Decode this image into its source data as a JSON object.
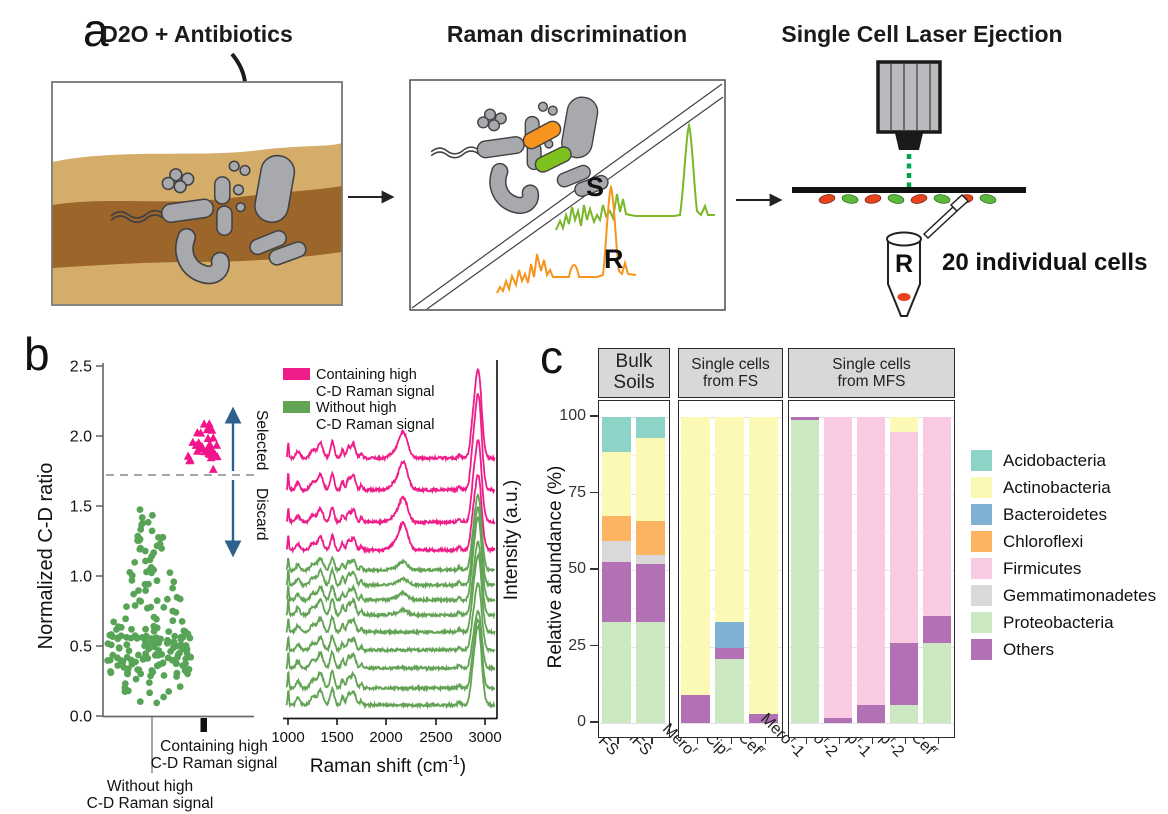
{
  "panel_a": {
    "label": "a",
    "step1": {
      "title": "D2O + Antibiotics"
    },
    "step2": {
      "title": "Raman discrimination",
      "sensitive_label": "S",
      "resistant_label": "R"
    },
    "step3": {
      "title": "Single Cell Laser Ejection",
      "tube_label": "R",
      "caption": "20 individual cells"
    },
    "colors": {
      "soil_light": "#d4ad6a",
      "soil_dark": "#9c6529",
      "cell_gray": "#a7a9ac",
      "cell_orange": "#f7941e",
      "cell_green": "#7dc21f",
      "laser_beam": "#00a551",
      "ejected_red": "#e8431f",
      "ejected_green": "#5cb93c"
    }
  },
  "panel_b": {
    "label": "b"
  },
  "panel_c": {
    "label": "c"
  },
  "chart_data": [
    {
      "id": "normalized-cd-ratio-swarm",
      "type": "scatter",
      "ylabel": "Normalized C-D ratio",
      "ylim": [
        0,
        2.5
      ],
      "yticks": [
        "0.0",
        "0.5",
        "1.0",
        "1.5",
        "2.0",
        "2.5"
      ],
      "threshold": {
        "value": 1.72,
        "style": "dashed",
        "color": "#9a9a9a"
      },
      "annotations": {
        "selected": "Selected",
        "discard": "Discard",
        "arrow_color": "#2e608d"
      },
      "categories": [
        {
          "label_line1": "Without high",
          "label_line2": "C-D Raman signal"
        },
        {
          "label_line1": "Containing high",
          "label_line2": "C-D Raman signal"
        }
      ],
      "series": [
        {
          "name": "Without high C-D Raman signal",
          "marker": "circle",
          "color": "#57a457",
          "n": 195,
          "y_range": [
            0.08,
            1.62
          ],
          "y_mode": 0.45,
          "x_center": 150,
          "x_halfwidth": 44
        },
        {
          "name": "Containing high C-D Raman signal",
          "marker": "triangle",
          "color": "#f3148b",
          "n": 30,
          "y_range": [
            1.755,
            2.21
          ],
          "y_mode": 1.92,
          "x_center": 205,
          "x_halfwidth": 17
        }
      ]
    },
    {
      "id": "raman-spectra",
      "type": "line",
      "xlabel_parts": {
        "pre": "Raman shift (cm",
        "sup": "-1",
        "post": ")"
      },
      "ylabel": "Intensity (a.u.)",
      "xticks": [
        "1000",
        "1500",
        "2000",
        "2500",
        "3000"
      ],
      "xlim": [
        1000,
        3100
      ],
      "legend": [
        {
          "line1": "Containing high",
          "line2": "C-D Raman signal",
          "color": "#ee1d8a"
        },
        {
          "line1": "Without high",
          "line2": "C-D Raman signal",
          "color": "#63a355"
        }
      ],
      "peak_centers": {
        "fingerprint": [
          1003,
          1100,
          1255,
          1330,
          1450,
          1555,
          1615,
          1665
        ],
        "c_d_band": 2170,
        "c_h_band": 2935
      },
      "series": [
        {
          "group": "Containing high C-D Raman signal",
          "color": "#ee1d8a",
          "baselines": [
            128,
            160,
            192,
            220
          ],
          "cd_peak_heights": [
            26,
            28,
            24,
            27
          ],
          "ch_peak_heights": [
            85,
            92,
            78,
            72
          ]
        },
        {
          "group": "Without high C-D Raman signal",
          "color": "#63a355",
          "baselines": [
            240,
            255,
            270,
            285,
            302,
            320,
            338,
            358,
            375
          ],
          "cd_peak_heights": [
            8,
            6,
            7,
            5,
            0,
            0,
            0,
            0,
            0
          ],
          "ch_peak_heights": [
            72,
            75,
            80,
            70,
            74,
            64,
            55,
            66,
            76
          ]
        }
      ]
    },
    {
      "id": "taxa-relative-abundance",
      "type": "bar",
      "stacked": true,
      "ylabel": "Relative abundance (%)",
      "ylim": [
        0,
        100
      ],
      "yticks": [
        100,
        75,
        50,
        25,
        0
      ],
      "ytick_labels": [
        "100",
        "75",
        "50",
        "25",
        "0"
      ],
      "legend": [
        {
          "name": "Acidobacteria",
          "color": "#8dd3c7"
        },
        {
          "name": "Actinobacteria",
          "color": "#fbf9b5"
        },
        {
          "name": "Bacteroidetes",
          "color": "#80b1d3"
        },
        {
          "name": "Chloroflexi",
          "color": "#fdb462"
        },
        {
          "name": "Firmicutes",
          "color": "#f9cbe3"
        },
        {
          "name": "Gemmatimonadetes",
          "color": "#d9d9d9"
        },
        {
          "name": "Proteobacteria",
          "color": "#cce8c2"
        },
        {
          "name": "Others",
          "color": "#b271b5"
        }
      ],
      "facets": [
        {
          "title_lines": [
            "Bulk",
            "Soils"
          ],
          "bars": [
            {
              "label": {
                "pre": "FS",
                "sup": "",
                "post": ""
              },
              "segments": [
                [
                  "Proteobacteria",
                  33
                ],
                [
                  "Others",
                  19.5
                ],
                [
                  "Gemmatimonadetes",
                  7
                ],
                [
                  "Chloroflexi",
                  8
                ],
                [
                  "Actinobacteria",
                  21
                ],
                [
                  "Acidobacteria",
                  11.5
                ]
              ]
            },
            {
              "label": {
                "pre": "MFS",
                "sup": "",
                "post": ""
              },
              "segments": [
                [
                  "Proteobacteria",
                  33
                ],
                [
                  "Others",
                  19
                ],
                [
                  "Gemmatimonadetes",
                  3
                ],
                [
                  "Chloroflexi",
                  11
                ],
                [
                  "Actinobacteria",
                  27
                ],
                [
                  "Acidobacteria",
                  7
                ]
              ]
            }
          ]
        },
        {
          "title_lines": [
            "Single cells",
            "from FS"
          ],
          "bars": [
            {
              "label": {
                "pre": "Mero",
                "sup": "r",
                "post": ""
              },
              "segments": [
                [
                  "Others",
                  9
                ],
                [
                  "Actinobacteria",
                  91
                ]
              ]
            },
            {
              "label": {
                "pre": "Cip",
                "sup": "r",
                "post": ""
              },
              "segments": [
                [
                  "Proteobacteria",
                  21
                ],
                [
                  "Others",
                  3.5
                ],
                [
                  "Bacteroidetes",
                  8.5
                ],
                [
                  "Actinobacteria",
                  67
                ]
              ]
            },
            {
              "label": {
                "pre": "Cef",
                "sup": "r",
                "post": ""
              },
              "segments": [
                [
                  "Others",
                  3
                ],
                [
                  "Actinobacteria",
                  97
                ]
              ]
            }
          ]
        },
        {
          "title_lines": [
            "Single cells",
            "from MFS"
          ],
          "bars": [
            {
              "label": {
                "pre": "Mero",
                "sup": "r",
                "post": "-1"
              },
              "segments": [
                [
                  "Proteobacteria",
                  99
                ],
                [
                  "Others",
                  1
                ]
              ]
            },
            {
              "label": {
                "pre": "Mero",
                "sup": "r",
                "post": "-2"
              },
              "segments": [
                [
                  "Others",
                  1.5
                ],
                [
                  "Firmicutes",
                  98.5
                ]
              ]
            },
            {
              "label": {
                "pre": "Cip",
                "sup": "r",
                "post": "-1"
              },
              "segments": [
                [
                  "Others",
                  6
                ],
                [
                  "Firmicutes",
                  94
                ]
              ]
            },
            {
              "label": {
                "pre": "Cip",
                "sup": "r",
                "post": "-2"
              },
              "segments": [
                [
                  "Proteobacteria",
                  6
                ],
                [
                  "Others",
                  20
                ],
                [
                  "Firmicutes",
                  69
                ],
                [
                  "Actinobacteria",
                  5
                ]
              ]
            },
            {
              "label": {
                "pre": "Cef",
                "sup": "r",
                "post": ""
              },
              "segments": [
                [
                  "Proteobacteria",
                  26
                ],
                [
                  "Others",
                  9
                ],
                [
                  "Firmicutes",
                  65
                ]
              ]
            }
          ]
        }
      ]
    }
  ]
}
